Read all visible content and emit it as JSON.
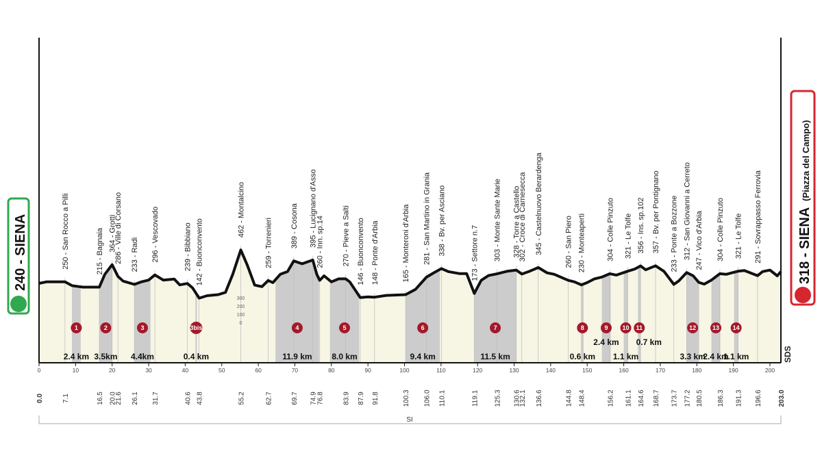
{
  "start": {
    "altitude": "240",
    "name": "SIENA"
  },
  "finish": {
    "altitude": "318",
    "name": "SIENA",
    "sub": "(Piazza del Campo)"
  },
  "range_label": "SI",
  "sds_label": "SDS",
  "colors": {
    "start_green": "#2fa84f",
    "finish_red": "#d6262e",
    "sector_badge": "#a3192a",
    "gravel_fill": "#cccccc",
    "road_fill": "#f7f5e4"
  },
  "chart_data": {
    "type": "area",
    "xlabel": "",
    "ylabel": "",
    "xlim": [
      0,
      203
    ],
    "ylim": [
      0,
      600
    ],
    "x_ticks": [
      0,
      10,
      20,
      30,
      40,
      50,
      60,
      70,
      80,
      90,
      100,
      110,
      120,
      130,
      140,
      150,
      160,
      170,
      180,
      190,
      200
    ],
    "elevation_scale_labels": [
      "300",
      "200",
      "100",
      "0"
    ],
    "profile": [
      [
        0,
        240
      ],
      [
        2,
        250
      ],
      [
        7.1,
        250
      ],
      [
        9,
        225
      ],
      [
        12,
        215
      ],
      [
        14,
        215
      ],
      [
        16.5,
        215
      ],
      [
        18,
        300
      ],
      [
        20,
        364
      ],
      [
        21.6,
        286
      ],
      [
        23,
        255
      ],
      [
        26.1,
        233
      ],
      [
        28,
        250
      ],
      [
        30,
        262
      ],
      [
        31.7,
        296
      ],
      [
        34,
        262
      ],
      [
        37,
        268
      ],
      [
        38.5,
        230
      ],
      [
        40.6,
        239
      ],
      [
        42,
        210
      ],
      [
        43.8,
        142
      ],
      [
        46,
        158
      ],
      [
        49,
        165
      ],
      [
        51,
        180
      ],
      [
        53,
        300
      ],
      [
        55.2,
        462
      ],
      [
        57,
        360
      ],
      [
        59,
        228
      ],
      [
        61,
        218
      ],
      [
        62.7,
        259
      ],
      [
        64,
        245
      ],
      [
        66,
        300
      ],
      [
        68,
        318
      ],
      [
        69.7,
        389
      ],
      [
        72,
        370
      ],
      [
        74.9,
        395
      ],
      [
        76,
        300
      ],
      [
        76.8,
        260
      ],
      [
        78,
        290
      ],
      [
        80,
        250
      ],
      [
        82,
        270
      ],
      [
        83.9,
        270
      ],
      [
        85,
        250
      ],
      [
        87.9,
        146
      ],
      [
        90,
        150
      ],
      [
        91.8,
        148
      ],
      [
        95,
        160
      ],
      [
        100.3,
        165
      ],
      [
        103,
        200
      ],
      [
        106,
        281
      ],
      [
        108,
        310
      ],
      [
        110.1,
        338
      ],
      [
        112,
        318
      ],
      [
        115,
        305
      ],
      [
        117,
        305
      ],
      [
        119.1,
        173
      ],
      [
        121,
        260
      ],
      [
        123,
        292
      ],
      [
        125.3,
        303
      ],
      [
        128,
        320
      ],
      [
        130.6,
        328
      ],
      [
        132.1,
        302
      ],
      [
        134,
        318
      ],
      [
        136.6,
        345
      ],
      [
        139,
        310
      ],
      [
        141,
        300
      ],
      [
        144.8,
        260
      ],
      [
        146.5,
        250
      ],
      [
        148.4,
        230
      ],
      [
        150,
        245
      ],
      [
        152,
        270
      ],
      [
        154,
        282
      ],
      [
        156.2,
        304
      ],
      [
        158,
        295
      ],
      [
        161.1,
        321
      ],
      [
        163,
        335
      ],
      [
        164.6,
        356
      ],
      [
        166,
        330
      ],
      [
        168.7,
        357
      ],
      [
        171,
        320
      ],
      [
        173.7,
        233
      ],
      [
        175,
        255
      ],
      [
        177.2,
        312
      ],
      [
        179,
        290
      ],
      [
        180.5,
        247
      ],
      [
        182,
        235
      ],
      [
        184,
        262
      ],
      [
        186.3,
        304
      ],
      [
        188,
        300
      ],
      [
        191.3,
        321
      ],
      [
        193,
        325
      ],
      [
        196.6,
        291
      ],
      [
        198,
        318
      ],
      [
        200,
        328
      ],
      [
        202,
        290
      ],
      [
        203,
        318
      ]
    ],
    "sectors": [
      {
        "num": "1",
        "from": 9,
        "to": 11.4,
        "length": "2.4 km"
      },
      {
        "num": "2",
        "from": 16.5,
        "to": 20.0,
        "length": "3.5km"
      },
      {
        "num": "3",
        "from": 26.1,
        "to": 30.5,
        "length": "4.4km"
      },
      {
        "num": "3bis",
        "from": 42.8,
        "to": 43.2,
        "length": "0.4 km"
      },
      {
        "num": "4",
        "from": 64.7,
        "to": 76.6,
        "length": "11.9 km"
      },
      {
        "num": "5",
        "from": 79.6,
        "to": 87.6,
        "length": "8.0 km"
      },
      {
        "num": "6",
        "from": 100.3,
        "to": 109.7,
        "length": "9.4 km"
      },
      {
        "num": "7",
        "from": 119.1,
        "to": 130.6,
        "length": "11.5 km"
      },
      {
        "num": "8",
        "from": 148.4,
        "to": 149.0,
        "length": "0.6 km"
      },
      {
        "num": "9",
        "from": 154.0,
        "to": 156.4,
        "length": "2.4 km"
      },
      {
        "num": "10",
        "from": 160.0,
        "to": 161.1,
        "length": "1.1 km"
      },
      {
        "num": "11",
        "from": 163.9,
        "to": 164.6,
        "length": "0.7 km"
      },
      {
        "num": "12",
        "from": 177.2,
        "to": 180.5,
        "length": "3.3 km"
      },
      {
        "num": "13",
        "from": 184.0,
        "to": 186.4,
        "length": "2.4 km"
      },
      {
        "num": "14",
        "from": 190.2,
        "to": 191.3,
        "length": "1.1 km"
      }
    ],
    "waypoints": [
      {
        "km": 7.1,
        "dist": "7.1",
        "label": "250 - San Rocco a Pilli"
      },
      {
        "km": 16.5,
        "dist": "16.5",
        "label": "215 - Bagnaia"
      },
      {
        "km": 20.0,
        "dist": "20.0",
        "label": "364 - Grotti"
      },
      {
        "km": 21.6,
        "dist": "21.6",
        "label": "286 - Ville di Corsano"
      },
      {
        "km": 26.1,
        "dist": "26.1",
        "label": "233 - Radi"
      },
      {
        "km": 31.7,
        "dist": "31.7",
        "label": "296 - Vescovado"
      },
      {
        "km": 40.6,
        "dist": "40.6",
        "label": "239 - Bibbiano"
      },
      {
        "km": 43.8,
        "dist": "43.8",
        "label": "142 - Buonconvento"
      },
      {
        "km": 55.2,
        "dist": "55.2",
        "label": "462 - Montalcino"
      },
      {
        "km": 62.7,
        "dist": "62.7",
        "label": "259 - Torrenieri"
      },
      {
        "km": 69.7,
        "dist": "69.7",
        "label": "389 - Cosona"
      },
      {
        "km": 74.9,
        "dist": "74.9",
        "label": "395 - Lucignano d'Asso"
      },
      {
        "km": 76.8,
        "dist": "76.8",
        "label": "260 - Inn. sp.14"
      },
      {
        "km": 83.9,
        "dist": "83.9",
        "label": "270 - Pieve a Salti"
      },
      {
        "km": 87.9,
        "dist": "87.9",
        "label": "146 - Buonconvento"
      },
      {
        "km": 91.8,
        "dist": "91.8",
        "label": "148 - Ponte d'Arbia"
      },
      {
        "km": 100.3,
        "dist": "100.3",
        "label": "165 - Monteroni d'Arbia"
      },
      {
        "km": 106.0,
        "dist": "106.0",
        "label": "281 - San Martino in Grania"
      },
      {
        "km": 110.1,
        "dist": "110.1",
        "label": "338 - Bv. per Asciano"
      },
      {
        "km": 119.1,
        "dist": "119.1",
        "label": "173 - Settore n.7"
      },
      {
        "km": 125.3,
        "dist": "125.3",
        "label": "303 - Monte Sante Marie"
      },
      {
        "km": 130.6,
        "dist": "130.6",
        "label": "328 - Torre a Castello"
      },
      {
        "km": 132.1,
        "dist": "132.1",
        "label": "302 - Croce di Carnesecca"
      },
      {
        "km": 136.6,
        "dist": "136.6",
        "label": "345 - Castelnuovo Berardenga"
      },
      {
        "km": 144.8,
        "dist": "144.8",
        "label": "260 - San Piero"
      },
      {
        "km": 148.4,
        "dist": "148.4",
        "label": "230 - Monteaperti"
      },
      {
        "km": 156.2,
        "dist": "156.2",
        "label": "304 - Colle Pinzuto"
      },
      {
        "km": 161.1,
        "dist": "161.1",
        "label": "321 - Le Tolfe"
      },
      {
        "km": 164.6,
        "dist": "164.6",
        "label": "356 - Ins. sp.102"
      },
      {
        "km": 168.7,
        "dist": "168.7",
        "label": "357 - Bv. per Pontignano"
      },
      {
        "km": 173.7,
        "dist": "173.7",
        "label": "233 - Ponte a Bozzone"
      },
      {
        "km": 177.2,
        "dist": "177.2",
        "label": "312 - San Giovanni a Cerreto"
      },
      {
        "km": 180.5,
        "dist": "180.5",
        "label": "247 - Vico d'Arbia"
      },
      {
        "km": 186.3,
        "dist": "186.3",
        "label": "304 - Colle Pinzuto"
      },
      {
        "km": 191.3,
        "dist": "191.3",
        "label": "321 - Le Tolfe"
      },
      {
        "km": 196.6,
        "dist": "196.6",
        "label": "291 - Sovrappasso Ferrovia"
      }
    ],
    "start_dist": "0.0",
    "end_dist": "203.0",
    "grid": false
  }
}
